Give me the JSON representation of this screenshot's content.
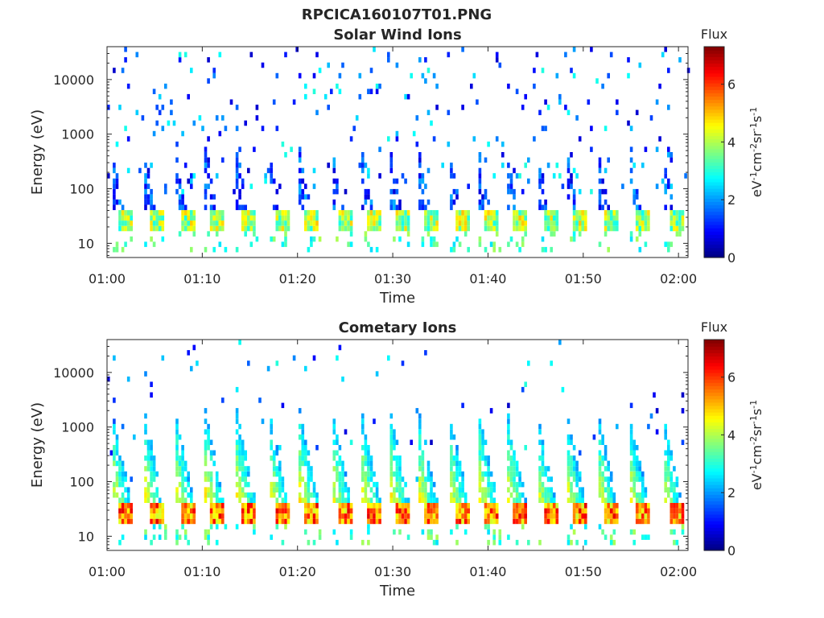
{
  "figure_title": "RPCICA160107T01.PNG",
  "chart_data": [
    {
      "type": "heatmap",
      "title": "Solar Wind Ions",
      "xlabel": "Time",
      "ylabel": "Energy (eV)",
      "xlim": [
        "01:00",
        "02:01"
      ],
      "xticks": [
        "01:00",
        "01:10",
        "01:20",
        "01:30",
        "01:40",
        "01:50",
        "02:00"
      ],
      "yscale": "log",
      "ylim": [
        5.5,
        40000
      ],
      "yticks": [
        10,
        100,
        1000,
        10000
      ],
      "yticklabels": [
        "10",
        "100",
        "1000",
        "10000"
      ],
      "colorbar": {
        "label_top": "Flux",
        "units": "eV-1cm-2sr-1s-1",
        "range": [
          0,
          7.3
        ],
        "ticks": [
          0,
          2,
          4,
          6
        ],
        "colormap": "jet"
      },
      "pulse_start_times_min": [
        0.4,
        3.8,
        7.0,
        10.2,
        13.5,
        16.9,
        20.1,
        23.5,
        26.6,
        29.6,
        32.6,
        35.8,
        38.9,
        41.9,
        45.0,
        48.1,
        51.4,
        54.7,
        58.2
      ],
      "dominant_energy_band_eV": [
        15,
        50
      ],
      "peak_flux": 5.2,
      "background": "sparse scattered counts 100 eV - 30000 eV, flux 1-3"
    },
    {
      "type": "heatmap",
      "title": "Cometary Ions",
      "xlabel": "Time",
      "ylabel": "Energy (eV)",
      "xlim": [
        "01:00",
        "02:01"
      ],
      "xticks": [
        "01:00",
        "01:10",
        "01:20",
        "01:30",
        "01:40",
        "01:50",
        "02:00"
      ],
      "yscale": "log",
      "ylim": [
        5.5,
        40000
      ],
      "yticks": [
        10,
        100,
        1000,
        10000
      ],
      "yticklabels": [
        "10",
        "100",
        "1000",
        "10000"
      ],
      "colorbar": {
        "label_top": "Flux",
        "units": "eV-1cm-2sr-1s-1",
        "range": [
          0,
          7.3
        ],
        "ticks": [
          0,
          2,
          4,
          6
        ],
        "colormap": "jet"
      },
      "pulse_start_times_min": [
        0.4,
        3.8,
        7.0,
        10.2,
        13.5,
        16.9,
        20.1,
        23.5,
        26.6,
        29.6,
        32.6,
        35.8,
        38.9,
        41.9,
        45.0,
        48.1,
        51.4,
        54.7,
        58.2
      ],
      "dominant_energy_band_eV": [
        15,
        40
      ],
      "peak_flux": 6.5,
      "background": "dispersed tails from ~2000 eV down to 15 eV each pulse, flux 2-6"
    }
  ]
}
